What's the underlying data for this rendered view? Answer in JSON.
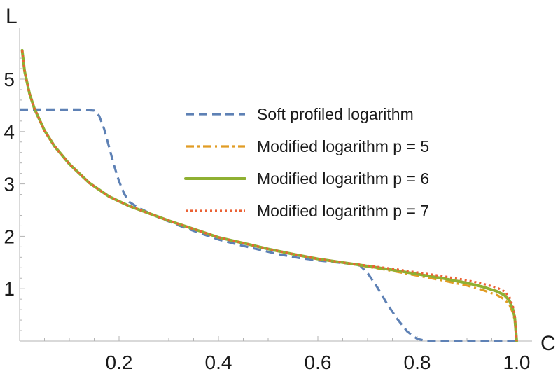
{
  "chart_data": {
    "type": "line",
    "title": "",
    "xlabel": "C",
    "ylabel": "L",
    "xlim": [
      0,
      1.0
    ],
    "ylim": [
      0,
      5.8
    ],
    "x_ticks": [
      {
        "value": 0.2,
        "label": "0.2"
      },
      {
        "value": 0.4,
        "label": "0.4"
      },
      {
        "value": 0.6,
        "label": "0.6"
      },
      {
        "value": 0.8,
        "label": "0.8"
      },
      {
        "value": 1.0,
        "label": "1.0"
      }
    ],
    "y_ticks": [
      {
        "value": 1,
        "label": "1"
      },
      {
        "value": 2,
        "label": "2"
      },
      {
        "value": 3,
        "label": "3"
      },
      {
        "value": 4,
        "label": "4"
      },
      {
        "value": 5,
        "label": "5"
      }
    ],
    "legend_position": "upper-right",
    "series": [
      {
        "name": "Soft profiled logarithm",
        "color": "#5E81B5",
        "dash": "dashed",
        "points": [
          [
            0,
            4.42
          ],
          [
            0.06,
            4.42
          ],
          [
            0.12,
            4.42
          ],
          [
            0.15,
            4.4
          ],
          [
            0.16,
            4.3
          ],
          [
            0.17,
            4.05
          ],
          [
            0.18,
            3.7
          ],
          [
            0.19,
            3.35
          ],
          [
            0.2,
            3.05
          ],
          [
            0.21,
            2.82
          ],
          [
            0.22,
            2.66
          ],
          [
            0.24,
            2.54
          ],
          [
            0.28,
            2.36
          ],
          [
            0.32,
            2.21
          ],
          [
            0.36,
            2.07
          ],
          [
            0.4,
            1.94
          ],
          [
            0.44,
            1.84
          ],
          [
            0.48,
            1.75
          ],
          [
            0.52,
            1.66
          ],
          [
            0.56,
            1.59
          ],
          [
            0.6,
            1.54
          ],
          [
            0.64,
            1.5
          ],
          [
            0.67,
            1.47
          ],
          [
            0.685,
            1.44
          ],
          [
            0.7,
            1.3
          ],
          [
            0.72,
            1.02
          ],
          [
            0.74,
            0.7
          ],
          [
            0.76,
            0.42
          ],
          [
            0.78,
            0.18
          ],
          [
            0.8,
            0.04
          ],
          [
            0.82,
            0.0
          ],
          [
            0.9,
            0.0
          ],
          [
            1.0,
            0.0
          ]
        ]
      },
      {
        "name": "Modified logarithm p = 5",
        "color": "#E19C24",
        "dash": "dash-dot",
        "points": [
          [
            0.005,
            5.55
          ],
          [
            0.01,
            5.15
          ],
          [
            0.02,
            4.72
          ],
          [
            0.03,
            4.43
          ],
          [
            0.05,
            4.02
          ],
          [
            0.07,
            3.72
          ],
          [
            0.1,
            3.38
          ],
          [
            0.14,
            3.02
          ],
          [
            0.18,
            2.76
          ],
          [
            0.22,
            2.58
          ],
          [
            0.26,
            2.44
          ],
          [
            0.3,
            2.3
          ],
          [
            0.35,
            2.14
          ],
          [
            0.4,
            1.98
          ],
          [
            0.45,
            1.87
          ],
          [
            0.5,
            1.76
          ],
          [
            0.55,
            1.66
          ],
          [
            0.6,
            1.57
          ],
          [
            0.65,
            1.5
          ],
          [
            0.7,
            1.42
          ],
          [
            0.75,
            1.34
          ],
          [
            0.8,
            1.25
          ],
          [
            0.85,
            1.16
          ],
          [
            0.9,
            1.06
          ],
          [
            0.93,
            0.98
          ],
          [
            0.96,
            0.88
          ],
          [
            0.975,
            0.8
          ],
          [
            0.985,
            0.7
          ],
          [
            0.992,
            0.55
          ],
          [
            0.996,
            0.4
          ],
          [
            0.999,
            0.1
          ],
          [
            1.0,
            0.0
          ]
        ]
      },
      {
        "name": "Modified logarithm p = 6",
        "color": "#8FB032",
        "dash": "solid",
        "points": [
          [
            0.005,
            5.55
          ],
          [
            0.01,
            5.15
          ],
          [
            0.02,
            4.72
          ],
          [
            0.03,
            4.43
          ],
          [
            0.05,
            4.02
          ],
          [
            0.07,
            3.72
          ],
          [
            0.1,
            3.38
          ],
          [
            0.14,
            3.02
          ],
          [
            0.18,
            2.76
          ],
          [
            0.22,
            2.58
          ],
          [
            0.26,
            2.44
          ],
          [
            0.3,
            2.3
          ],
          [
            0.35,
            2.14
          ],
          [
            0.4,
            1.98
          ],
          [
            0.45,
            1.87
          ],
          [
            0.5,
            1.76
          ],
          [
            0.55,
            1.66
          ],
          [
            0.6,
            1.57
          ],
          [
            0.65,
            1.5
          ],
          [
            0.7,
            1.43
          ],
          [
            0.75,
            1.36
          ],
          [
            0.8,
            1.28
          ],
          [
            0.85,
            1.2
          ],
          [
            0.9,
            1.11
          ],
          [
            0.93,
            1.04
          ],
          [
            0.96,
            0.95
          ],
          [
            0.975,
            0.88
          ],
          [
            0.985,
            0.78
          ],
          [
            0.992,
            0.62
          ],
          [
            0.996,
            0.45
          ],
          [
            0.999,
            0.12
          ],
          [
            1.0,
            0.0
          ]
        ]
      },
      {
        "name": "Modified logarithm p = 7",
        "color": "#EB6235",
        "dash": "dotted",
        "points": [
          [
            0.005,
            5.55
          ],
          [
            0.01,
            5.15
          ],
          [
            0.02,
            4.72
          ],
          [
            0.03,
            4.43
          ],
          [
            0.05,
            4.02
          ],
          [
            0.07,
            3.72
          ],
          [
            0.1,
            3.38
          ],
          [
            0.14,
            3.02
          ],
          [
            0.18,
            2.76
          ],
          [
            0.22,
            2.58
          ],
          [
            0.26,
            2.44
          ],
          [
            0.3,
            2.3
          ],
          [
            0.35,
            2.14
          ],
          [
            0.4,
            1.98
          ],
          [
            0.45,
            1.87
          ],
          [
            0.5,
            1.76
          ],
          [
            0.55,
            1.66
          ],
          [
            0.6,
            1.57
          ],
          [
            0.65,
            1.5
          ],
          [
            0.7,
            1.44
          ],
          [
            0.75,
            1.38
          ],
          [
            0.8,
            1.31
          ],
          [
            0.85,
            1.24
          ],
          [
            0.9,
            1.16
          ],
          [
            0.93,
            1.1
          ],
          [
            0.96,
            1.02
          ],
          [
            0.975,
            0.95
          ],
          [
            0.985,
            0.85
          ],
          [
            0.992,
            0.68
          ],
          [
            0.996,
            0.5
          ],
          [
            0.999,
            0.14
          ],
          [
            1.0,
            0.0
          ]
        ]
      }
    ]
  }
}
